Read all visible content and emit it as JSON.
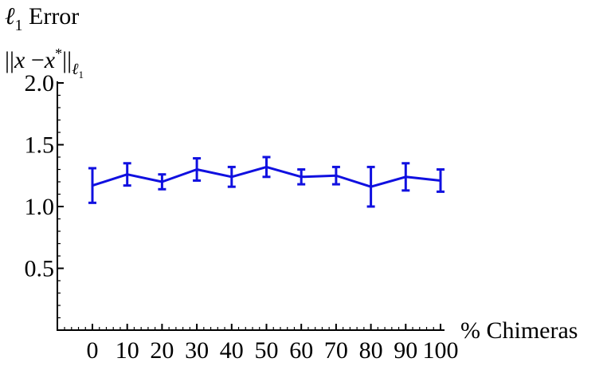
{
  "chart_data": {
    "type": "line",
    "title": "ℓ1 Error",
    "ylabel": "||x − x*||ℓ1",
    "xlabel": "% Chimeras",
    "x": [
      0,
      10,
      20,
      30,
      40,
      50,
      60,
      70,
      80,
      90,
      100
    ],
    "series": [
      {
        "values": [
          1.17,
          1.26,
          1.2,
          1.3,
          1.24,
          1.32,
          1.24,
          1.25,
          1.16,
          1.24,
          1.21
        ],
        "error": [
          0.14,
          0.09,
          0.06,
          0.09,
          0.08,
          0.08,
          0.06,
          0.07,
          0.16,
          0.11,
          0.09
        ],
        "color": "#1010e0"
      }
    ],
    "x_ticks": [
      "0",
      "10",
      "20",
      "30",
      "40",
      "50",
      "60",
      "70",
      "80",
      "90",
      "100"
    ],
    "y_ticks": [
      "0.5",
      "1.0",
      "1.5",
      "2.0"
    ],
    "xlim": [
      -10,
      102
    ],
    "ylim": [
      0,
      2.0
    ],
    "grid": false
  }
}
